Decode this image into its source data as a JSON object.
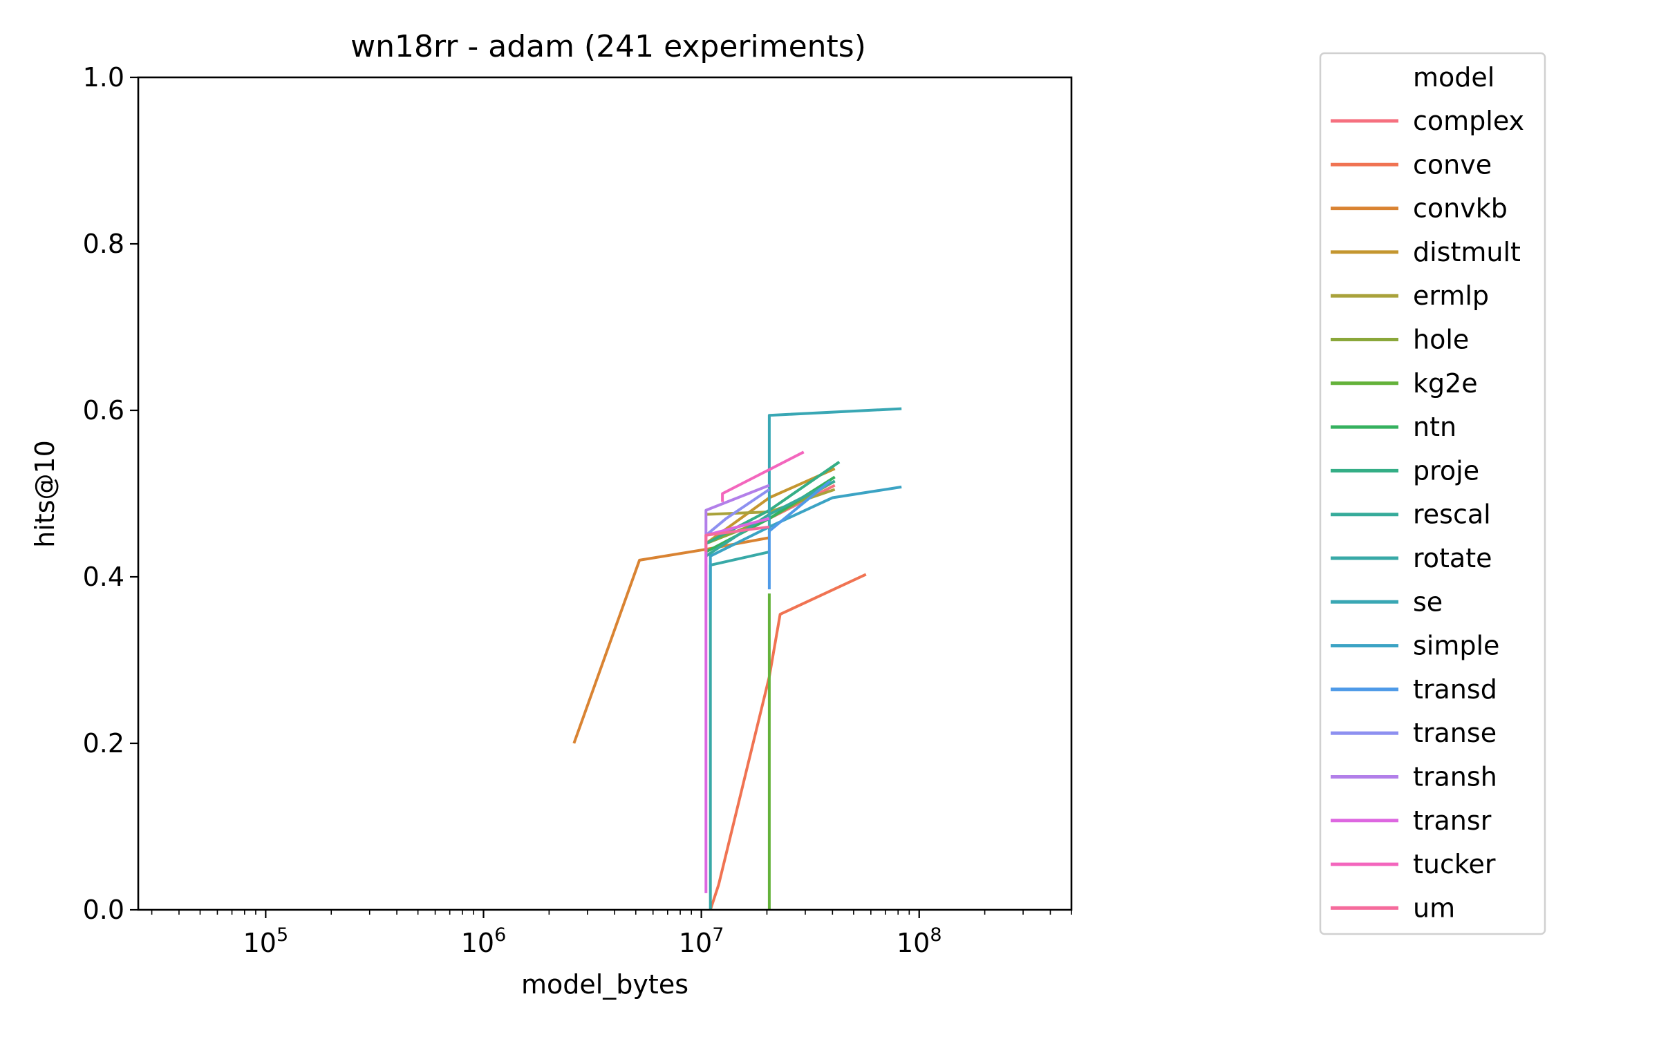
{
  "chart_data": {
    "type": "line",
    "title": "wn18rr - adam  (241 experiments)",
    "xlabel": "model_bytes",
    "ylabel": "hits@10",
    "xscale": "log",
    "xlim": [
      26000,
      500000000
    ],
    "ylim": [
      0.0,
      1.0
    ],
    "x_tick_labels": [
      {
        "value": 100000,
        "base": "10",
        "exp": "5"
      },
      {
        "value": 1000000,
        "base": "10",
        "exp": "6"
      },
      {
        "value": 10000000,
        "base": "10",
        "exp": "7"
      },
      {
        "value": 100000000,
        "base": "10",
        "exp": "8"
      }
    ],
    "y_tick_labels": [
      "0.0",
      "0.2",
      "0.4",
      "0.6",
      "0.8",
      "1.0"
    ],
    "grid": false,
    "legend": {
      "title": "model",
      "placement": "right, outside"
    },
    "series": [
      {
        "name": "complex",
        "color": "#f6707f",
        "points": [
          [
            10500000,
            0.44
          ],
          [
            13000000,
            0.45
          ],
          [
            20500000,
            0.47
          ],
          [
            41000000,
            0.51
          ]
        ]
      },
      {
        "name": "conve",
        "color": "#f07352",
        "points": [
          [
            11000000,
            0.0
          ],
          [
            12000000,
            0.03
          ],
          [
            20500000,
            0.28
          ],
          [
            23000000,
            0.355
          ],
          [
            57000000,
            0.403
          ]
        ]
      },
      {
        "name": "convkb",
        "color": "#d98332",
        "points": [
          [
            2600000,
            0.2
          ],
          [
            5200000,
            0.42
          ],
          [
            10500000,
            0.433
          ],
          [
            20500000,
            0.447
          ]
        ]
      },
      {
        "name": "distmult",
        "color": "#c4962f",
        "points": [
          [
            10500000,
            0.44
          ],
          [
            20500000,
            0.495
          ],
          [
            41000000,
            0.53
          ]
        ]
      },
      {
        "name": "ermlp",
        "color": "#a9a23b",
        "points": [
          [
            10500000,
            0.475
          ],
          [
            20500000,
            0.478
          ],
          [
            41000000,
            0.505
          ]
        ]
      },
      {
        "name": "hole",
        "color": "#8aa73a",
        "points": [
          [
            10500000,
            0.44
          ],
          [
            20500000,
            0.47
          ],
          [
            41000000,
            0.515
          ]
        ]
      },
      {
        "name": "kg2e",
        "color": "#64b23a",
        "points": [
          [
            20500000,
            0.0
          ],
          [
            20500000,
            0.38
          ]
        ]
      },
      {
        "name": "ntn",
        "color": "#35b15f",
        "points": [
          [
            10500000,
            0.43
          ],
          [
            20500000,
            0.47
          ],
          [
            41000000,
            0.52
          ]
        ]
      },
      {
        "name": "proje",
        "color": "#34ae86",
        "points": [
          [
            10500000,
            0.44
          ],
          [
            20500000,
            0.48
          ],
          [
            43000000,
            0.538
          ]
        ]
      },
      {
        "name": "rescal",
        "color": "#36ab9a",
        "points": [
          [
            10500000,
            0.425
          ],
          [
            20500000,
            0.475
          ],
          [
            41000000,
            0.515
          ]
        ]
      },
      {
        "name": "rotate",
        "color": "#38a9a7",
        "points": [
          [
            11000000,
            0.0
          ],
          [
            11000000,
            0.414
          ],
          [
            20500000,
            0.43
          ]
        ]
      },
      {
        "name": "se",
        "color": "#39a7b4",
        "points": [
          [
            20500000,
            0.453
          ],
          [
            20500000,
            0.594
          ],
          [
            83000000,
            0.602
          ]
        ]
      },
      {
        "name": "simple",
        "color": "#3ba3c4",
        "points": [
          [
            11000000,
            0.36
          ],
          [
            11000000,
            0.425
          ],
          [
            20500000,
            0.46
          ],
          [
            40000000,
            0.495
          ],
          [
            83000000,
            0.508
          ]
        ]
      },
      {
        "name": "transd",
        "color": "#4e9ae8",
        "points": [
          [
            20500000,
            0.385
          ],
          [
            20500000,
            0.455
          ],
          [
            39000000,
            0.515
          ]
        ]
      },
      {
        "name": "transe",
        "color": "#8d90f0",
        "points": [
          [
            10500000,
            0.45
          ],
          [
            13000000,
            0.47
          ],
          [
            20500000,
            0.505
          ]
        ]
      },
      {
        "name": "transh",
        "color": "#b27fe9",
        "points": [
          [
            10500000,
            0.36
          ],
          [
            10500000,
            0.48
          ],
          [
            20500000,
            0.51
          ]
        ]
      },
      {
        "name": "transr",
        "color": "#dd67e0",
        "points": [
          [
            10500000,
            0.02
          ],
          [
            10500000,
            0.45
          ],
          [
            20500000,
            0.47
          ]
        ]
      },
      {
        "name": "tucker",
        "color": "#f366bd",
        "points": [
          [
            12500000,
            0.49
          ],
          [
            12500000,
            0.5
          ],
          [
            29500000,
            0.55
          ]
        ]
      },
      {
        "name": "um",
        "color": "#f56b9c",
        "points": [
          [
            10500000,
            0.43
          ],
          [
            10500000,
            0.45
          ],
          [
            20500000,
            0.46
          ]
        ]
      }
    ]
  }
}
